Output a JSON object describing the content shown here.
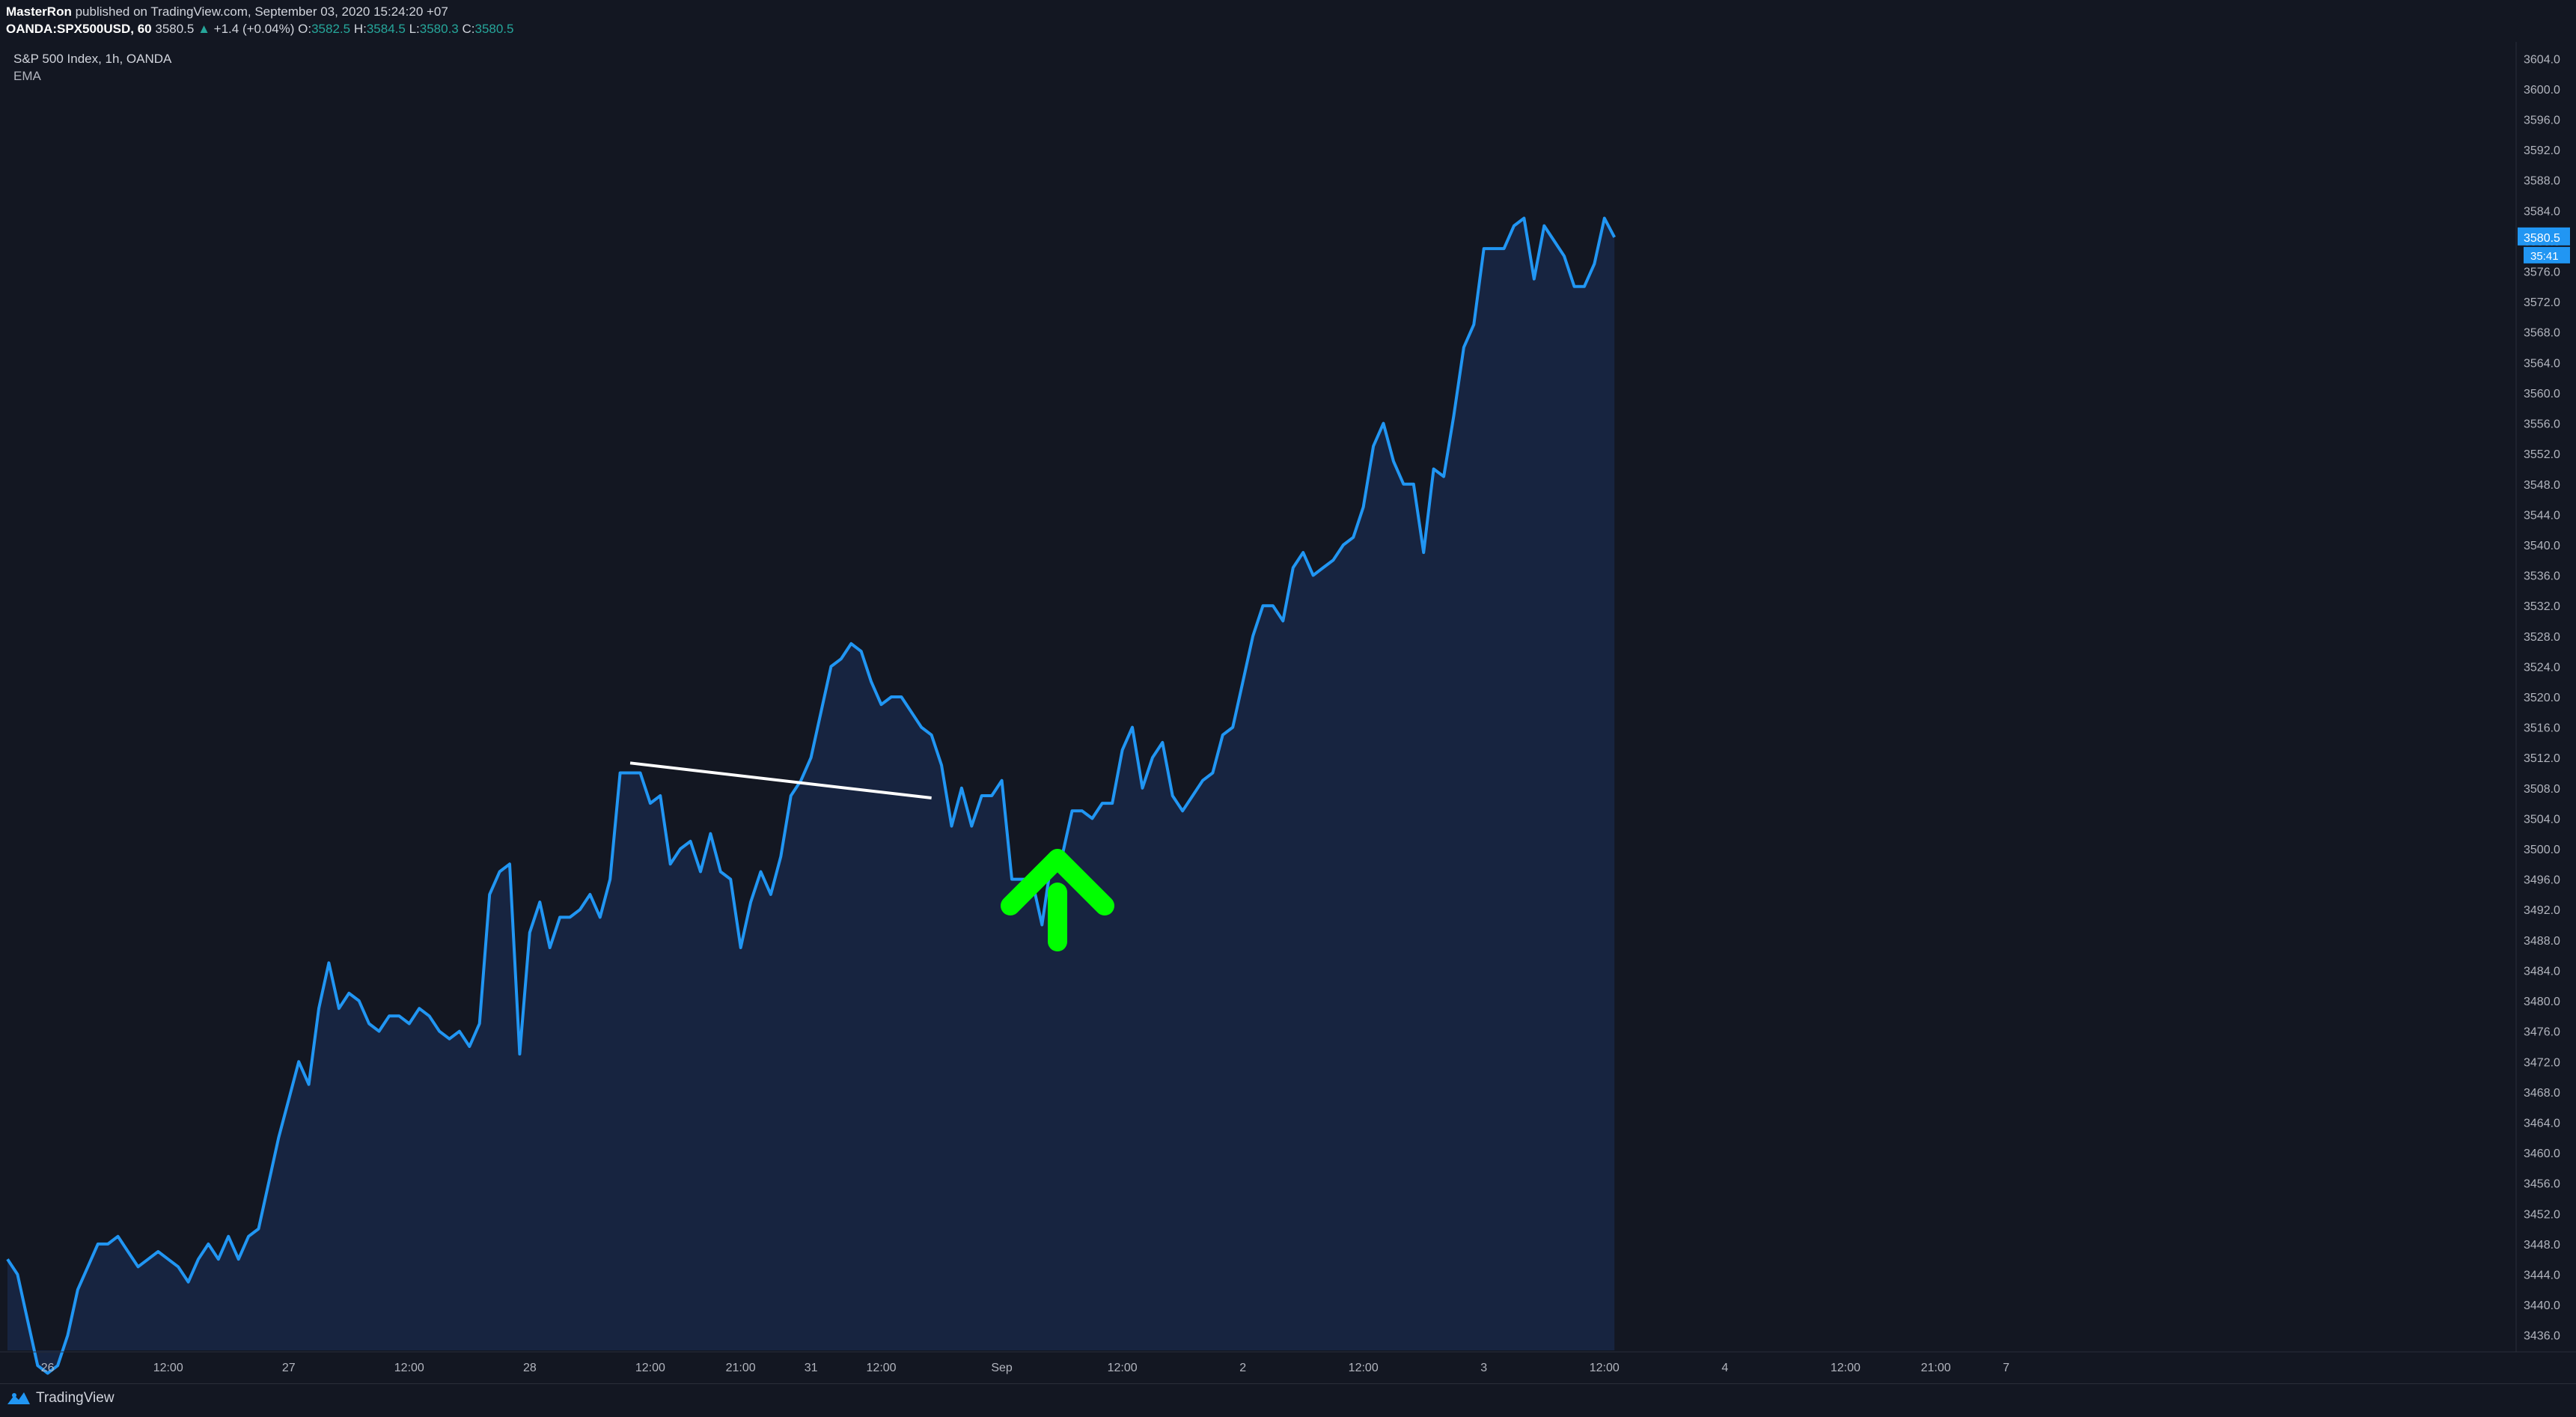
{
  "header": {
    "author": "MasterRon",
    "published_text": "published on TradingView.com, September 03, 2020 15:24:20 +07",
    "symbol": "OANDA:SPX500USD, 60",
    "last": "3580.5",
    "change": "+1.4 (+0.04%)",
    "o_label": "O:",
    "o_value": "3582.5",
    "h_label": "H:",
    "h_value": "3584.5",
    "l_label": "L:",
    "l_value": "3580.3",
    "c_label": "C:",
    "c_value": "3580.5"
  },
  "legend": {
    "title": "S&P 500 Index, 1h, OANDA",
    "indicator": "EMA"
  },
  "price_label": {
    "value": "3580.5",
    "countdown": "35:41"
  },
  "footer": {
    "brand": "TradingView"
  },
  "colors": {
    "background": "#131722",
    "line": "#2196f3",
    "area_fill": "#172440",
    "price_tag": "#2196f3",
    "arrow": "#00ff00",
    "trendline": "#ffffff",
    "up_text": "#26a69a"
  },
  "icons": {
    "arrow": "green-up-arrow-icon",
    "logo": "tradingview-logo-icon"
  },
  "chart_data": {
    "type": "area",
    "ylim": [
      3434.0,
      3606.0
    ],
    "y_ticks": [
      "3604.0",
      "3600.0",
      "3596.0",
      "3592.0",
      "3588.0",
      "3584.0",
      "3580.0",
      "3576.0",
      "3572.0",
      "3568.0",
      "3564.0",
      "3560.0",
      "3556.0",
      "3552.0",
      "3548.0",
      "3544.0",
      "3540.0",
      "3536.0",
      "3532.0",
      "3528.0",
      "3524.0",
      "3520.0",
      "3516.0",
      "3512.0",
      "3508.0",
      "3504.0",
      "3500.0",
      "3496.0",
      "3492.0",
      "3488.0",
      "3484.0",
      "3480.0",
      "3476.0",
      "3472.0",
      "3468.0",
      "3464.0",
      "3460.0",
      "3456.0",
      "3452.0",
      "3448.0",
      "3444.0",
      "3440.0",
      "3436.0"
    ],
    "x_ticks": [
      {
        "label": "26",
        "i": 4
      },
      {
        "label": "12:00",
        "i": 16
      },
      {
        "label": "27",
        "i": 28
      },
      {
        "label": "12:00",
        "i": 40
      },
      {
        "label": "28",
        "i": 52
      },
      {
        "label": "12:00",
        "i": 64
      },
      {
        "label": "21:00",
        "i": 73
      },
      {
        "label": "31",
        "i": 80
      },
      {
        "label": "12:00",
        "i": 87
      },
      {
        "label": "Sep",
        "i": 99
      },
      {
        "label": "12:00",
        "i": 111
      },
      {
        "label": "2",
        "i": 123
      },
      {
        "label": "12:00",
        "i": 135
      },
      {
        "label": "3",
        "i": 147
      },
      {
        "label": "12:00",
        "i": 159
      },
      {
        "label": "4",
        "i": 171
      },
      {
        "label": "12:00",
        "i": 183
      },
      {
        "label": "21:00",
        "i": 192
      },
      {
        "label": "7",
        "i": 199
      }
    ],
    "grid": false,
    "series": [
      {
        "values": [
          3446,
          3444,
          3438,
          3432,
          3431,
          3432,
          3436,
          3442,
          3445,
          3448,
          3448,
          3449,
          3447,
          3445,
          3446,
          3447,
          3446,
          3445,
          3443,
          3446,
          3448,
          3446,
          3449,
          3446,
          3449,
          3450,
          3456,
          3462,
          3467,
          3472,
          3469,
          3479,
          3485,
          3479,
          3481,
          3480,
          3477,
          3476,
          3478,
          3478,
          3477,
          3479,
          3478,
          3476,
          3475,
          3476,
          3474,
          3477,
          3494,
          3497,
          3498,
          3473,
          3489,
          3493,
          3487,
          3491,
          3491,
          3492,
          3494,
          3491,
          3496,
          3510,
          3510,
          3510,
          3506,
          3507,
          3498,
          3500,
          3501,
          3497,
          3502,
          3497,
          3496,
          3487,
          3493,
          3497,
          3494,
          3499,
          3507,
          3509,
          3512,
          3518,
          3524,
          3525,
          3527,
          3526,
          3522,
          3519,
          3520,
          3520,
          3518,
          3516,
          3515,
          3511,
          3503,
          3508,
          3503,
          3507,
          3507,
          3509,
          3496,
          3496,
          3496,
          3490,
          3499,
          3499,
          3505,
          3505,
          3504,
          3506,
          3506,
          3513,
          3516,
          3508,
          3512,
          3514,
          3507,
          3505,
          3507,
          3509,
          3510,
          3515,
          3516,
          3522,
          3528,
          3532,
          3532,
          3530,
          3537,
          3539,
          3536,
          3537,
          3538,
          3540,
          3541,
          3545,
          3553,
          3556,
          3551,
          3548,
          3548,
          3539,
          3550,
          3549,
          3557,
          3566,
          3569,
          3579,
          3579,
          3579,
          3582,
          3583,
          3575,
          3582,
          3580,
          3578,
          3574,
          3574,
          3577,
          3583,
          3580.5
        ]
      }
    ],
    "trendline": {
      "start": {
        "i": 62,
        "value": 3511.3
      },
      "end": {
        "i": 92,
        "value": 3506.7
      }
    }
  }
}
